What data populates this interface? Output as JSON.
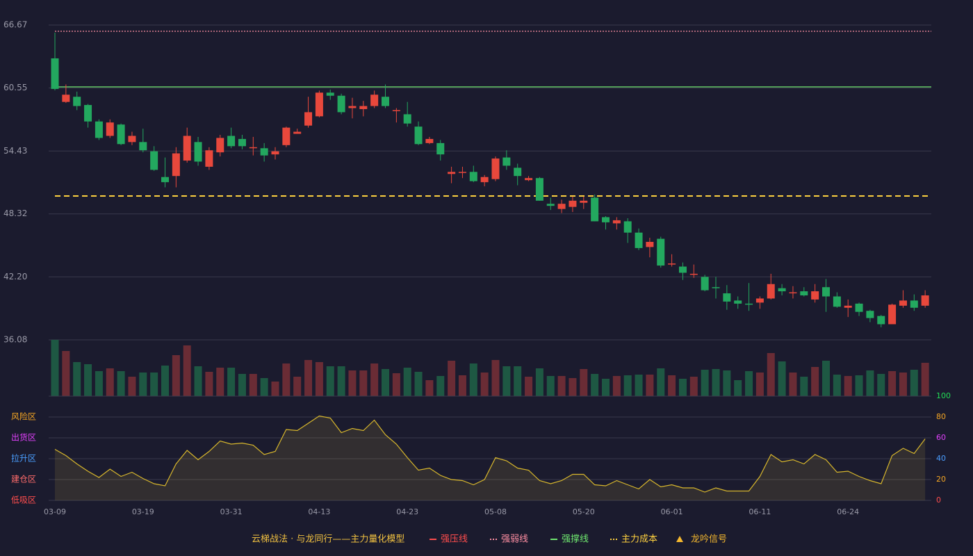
{
  "chart_data": {
    "type": "candlestick",
    "categories": [
      "03-09",
      null,
      null,
      null,
      null,
      null,
      null,
      null,
      "03-19",
      null,
      null,
      null,
      null,
      null,
      null,
      null,
      "03-31",
      null,
      null,
      null,
      null,
      null,
      null,
      null,
      "04-13",
      null,
      null,
      null,
      null,
      null,
      null,
      null,
      "04-23",
      null,
      null,
      null,
      null,
      null,
      null,
      null,
      "05-08",
      null,
      null,
      null,
      null,
      null,
      null,
      null,
      "05-20",
      null,
      null,
      null,
      null,
      null,
      null,
      null,
      "06-01",
      null,
      null,
      null,
      null,
      null,
      null,
      null,
      "06-11",
      null,
      null,
      null,
      null,
      null,
      null,
      null,
      "06-24",
      null,
      null,
      null,
      null,
      null,
      null,
      null
    ],
    "open": [
      63.43,
      59.2,
      59.7,
      58.9,
      57.3,
      55.9,
      57.0,
      55.3,
      55.3,
      54.4,
      51.9,
      52.0,
      53.5,
      55.3,
      52.9,
      54.3,
      55.9,
      55.6,
      54.7,
      54.7,
      54.1,
      55.0,
      56.1,
      56.9,
      57.8,
      60.1,
      59.8,
      58.6,
      58.5,
      58.8,
      59.7,
      58.3,
      58.0,
      56.8,
      55.2,
      55.2,
      52.2,
      52.3,
      52.4,
      51.4,
      51.7,
      53.8,
      52.8,
      51.6,
      51.8,
      49.3,
      48.8,
      49.0,
      49.4,
      49.9,
      48.0,
      47.4,
      47.6,
      46.5,
      45.1,
      45.9,
      43.4,
      43.2,
      42.4,
      42.2,
      41.2,
      40.6,
      39.9,
      39.6,
      39.7,
      40.1,
      41.1,
      40.6,
      40.8,
      40.0,
      41.2,
      40.3,
      39.2,
      39.6,
      38.9,
      38.4,
      37.6,
      39.4,
      39.9,
      39.4
    ],
    "high": [
      65.93,
      60.9,
      60.2,
      59.0,
      57.5,
      57.5,
      57.1,
      56.3,
      56.6,
      54.9,
      53.8,
      54.8,
      56.7,
      55.8,
      54.8,
      56.0,
      56.7,
      56.0,
      55.8,
      55.2,
      54.8,
      56.8,
      56.6,
      59.7,
      60.3,
      60.4,
      60.0,
      59.6,
      59.3,
      60.3,
      60.9,
      58.6,
      59.2,
      57.3,
      55.8,
      55.5,
      52.9,
      52.9,
      53.0,
      52.1,
      53.9,
      54.5,
      53.2,
      52.0,
      51.9,
      49.9,
      49.7,
      50.0,
      50.0,
      50.2,
      48.1,
      48.0,
      47.9,
      46.9,
      46.0,
      46.1,
      44.4,
      43.6,
      43.4,
      42.4,
      42.2,
      41.4,
      40.3,
      41.6,
      40.3,
      42.5,
      41.5,
      41.3,
      41.2,
      41.5,
      42.0,
      40.7,
      40.0,
      39.7,
      39.0,
      38.5,
      39.6,
      40.9,
      40.5,
      40.9
    ],
    "low": [
      60.32,
      59.1,
      58.4,
      56.7,
      55.5,
      55.7,
      55.0,
      55.0,
      54.3,
      52.5,
      50.9,
      50.9,
      53.3,
      53.0,
      52.6,
      53.9,
      54.7,
      54.6,
      54.0,
      53.4,
      53.6,
      54.8,
      56.1,
      56.7,
      57.7,
      59.4,
      58.0,
      57.6,
      57.8,
      58.6,
      58.6,
      57.2,
      56.8,
      55.0,
      55.1,
      53.5,
      51.3,
      51.8,
      51.4,
      51.0,
      51.5,
      52.6,
      51.1,
      51.5,
      49.6,
      48.7,
      48.4,
      48.5,
      48.8,
      47.6,
      46.8,
      46.8,
      45.5,
      44.8,
      44.1,
      43.1,
      43.2,
      41.9,
      42.1,
      40.8,
      40.1,
      39.0,
      39.1,
      38.9,
      39.1,
      40.0,
      40.4,
      40.1,
      40.3,
      39.7,
      38.8,
      39.2,
      38.3,
      38.4,
      37.8,
      37.3,
      37.6,
      39.2,
      38.9,
      39.2
    ],
    "close": [
      60.46,
      59.9,
      58.8,
      57.3,
      55.7,
      57.2,
      55.1,
      55.9,
      54.5,
      52.6,
      51.4,
      54.2,
      55.9,
      53.4,
      54.5,
      55.7,
      54.9,
      54.9,
      54.8,
      54.0,
      54.4,
      56.7,
      56.3,
      58.2,
      60.1,
      59.8,
      58.2,
      58.8,
      58.8,
      59.9,
      58.8,
      58.4,
      57.1,
      55.1,
      55.6,
      54.1,
      52.4,
      52.4,
      51.5,
      51.9,
      53.7,
      53.0,
      52.0,
      51.8,
      49.6,
      49.1,
      49.3,
      49.6,
      49.6,
      47.6,
      47.5,
      47.7,
      46.5,
      45.0,
      45.6,
      43.3,
      43.5,
      42.6,
      42.5,
      40.9,
      41.1,
      39.8,
      39.6,
      39.5,
      40.1,
      41.5,
      40.8,
      40.7,
      40.4,
      40.8,
      40.3,
      39.3,
      39.4,
      38.8,
      38.2,
      37.6,
      39.5,
      39.9,
      39.2,
      40.4
    ],
    "ylim": [
      36.08,
      66.67
    ],
    "yticks": [
      {
        "value": 36.08,
        "label": "36.08"
      },
      {
        "value": 42.2,
        "label": "42.20"
      },
      {
        "value": 48.32,
        "label": "48.32"
      },
      {
        "value": 54.43,
        "label": "54.43"
      },
      {
        "value": 60.55,
        "label": "60.55"
      },
      {
        "value": 66.67,
        "label": "66.67"
      }
    ],
    "grid": true,
    "up_color": "#e8483c",
    "down_color": "#23a85f",
    "legend_title": "云梯战法 · 与龙同行——主力量化模型",
    "lines": [
      {
        "name": "强压线",
        "color": "#ff4d4d",
        "style": "solid"
      },
      {
        "name": "强弱线",
        "color": "#ff8fa3",
        "style": "dotted",
        "value": 66.06
      },
      {
        "name": "强撑线",
        "color": "#6fe86f",
        "style": "solid",
        "value": 60.66
      },
      {
        "name": "主力成本",
        "color": "#ffd23f",
        "style": "dashed",
        "value": 50.06
      },
      {
        "name": "龙吟信号",
        "color": "#f5b82e",
        "style": "triangle"
      }
    ],
    "volume": {
      "values": [
        81,
        65,
        49,
        46,
        36,
        40,
        36,
        28,
        34,
        34,
        44,
        59,
        73,
        43,
        35,
        41,
        41,
        32,
        32,
        26,
        21,
        47,
        28,
        52,
        49,
        43,
        43,
        37,
        37,
        47,
        39,
        33,
        41,
        35,
        23,
        29,
        51,
        30,
        47,
        34,
        52,
        43,
        43,
        28,
        40,
        29,
        29,
        26,
        39,
        32,
        25,
        29,
        30,
        31,
        31,
        40,
        30,
        25,
        28,
        38,
        39,
        37,
        23,
        36,
        34,
        62,
        50,
        34,
        28,
        42,
        51,
        31,
        29,
        30,
        37,
        32,
        36,
        34,
        38,
        48
      ],
      "up_color": "#6a2c35",
      "down_color": "#1e5843"
    },
    "indicator": {
      "values": [
        49,
        43,
        35,
        28,
        22,
        30,
        23,
        27,
        21,
        16,
        14,
        35,
        48,
        39,
        47,
        57,
        54,
        55,
        53,
        44,
        47,
        68,
        67,
        74,
        81,
        79,
        65,
        69,
        67,
        77,
        63,
        54,
        41,
        29,
        31,
        24,
        20,
        19,
        15,
        20,
        41,
        38,
        31,
        29,
        19,
        16,
        19,
        25,
        25,
        15,
        14,
        19,
        15,
        11,
        20,
        13,
        15,
        12,
        12,
        8,
        12,
        9,
        9,
        9,
        23,
        44,
        37,
        39,
        35,
        44,
        39,
        27,
        28,
        23,
        19,
        16,
        43,
        50,
        45,
        59
      ],
      "color": "#d9b82c",
      "ylim": [
        0,
        100
      ],
      "yticks": [
        0,
        20,
        40,
        60,
        80,
        100
      ],
      "ytick_colors": [
        "#ff4d4d",
        "#f5a623",
        "#4a9eff",
        "#e040fb",
        "#f5a623",
        "#22dd55"
      ],
      "zones": [
        {
          "label": "风险区",
          "value": 80,
          "color": "#f5a623"
        },
        {
          "label": "出货区",
          "value": 60,
          "color": "#e040fb"
        },
        {
          "label": "拉升区",
          "value": 40,
          "color": "#4a9eff"
        },
        {
          "label": "建仓区",
          "value": 20,
          "color": "#ff6b6b"
        },
        {
          "label": "低吸区",
          "value": 0,
          "color": "#ff4d4d"
        }
      ]
    }
  }
}
